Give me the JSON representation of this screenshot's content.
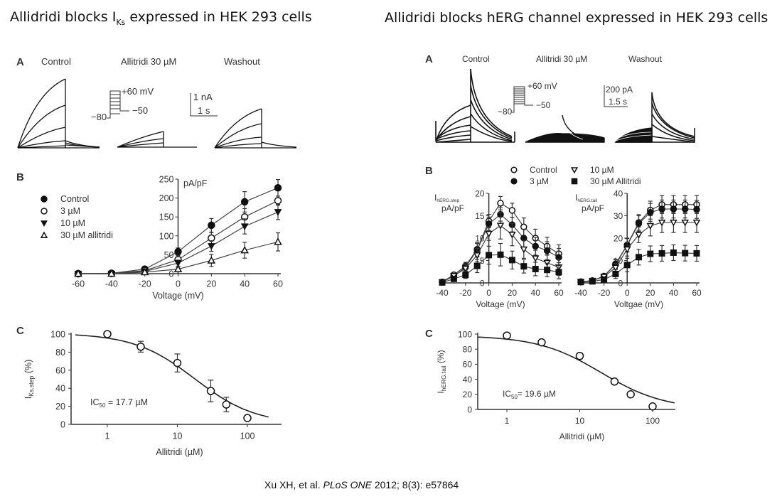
{
  "titles": {
    "left": {
      "prefix": "Allidridi blocks I",
      "sub": "Ks",
      "suffix": " expressed in HEK 293 cells"
    },
    "right": "Allidridi blocks hERG channel expressed in HEK 293 cells"
  },
  "citation": {
    "authors": "Xu XH, et al. ",
    "journal": "PLoS ONE",
    "rest": " 2012; 8(3): e57864"
  },
  "left_panel": {
    "A": {
      "letter": "A",
      "conditions": [
        "Control",
        "Allitridi 30 µM",
        "Washout"
      ],
      "protocol": {
        "top": "+60 mV",
        "hold": "−80",
        "tail": "−50"
      },
      "scale": {
        "current": "1 nA",
        "time": "1 s"
      }
    },
    "B": {
      "letter": "B"
    },
    "C": {
      "letter": "C",
      "annotation_main": "IC",
      "annotation_sub": "50",
      "annotation_rest": " = 17.7 µM"
    }
  },
  "right_panel": {
    "A": {
      "letter": "A",
      "conditions": [
        "Control",
        "Allitridi 30 µM",
        "Washout"
      ],
      "protocol": {
        "top": "+60 mV",
        "hold": "−80",
        "tail": "−50"
      },
      "scale": {
        "current": "200 pA",
        "time": "1.5 s"
      }
    },
    "B": {
      "letter": "B"
    },
    "C": {
      "letter": "C",
      "annotation_main": "IC",
      "annotation_sub": "50",
      "annotation_rest": "= 19.6 µM"
    }
  },
  "chart_data": [
    {
      "id": "iks-iv",
      "type": "line",
      "title": "",
      "xlabel": "Voltage (mV)",
      "ylabel": "pA/pF",
      "xlim": [
        -60,
        60
      ],
      "ylim": [
        0,
        250
      ],
      "xticks": [
        -60,
        -40,
        -20,
        0,
        20,
        40,
        60
      ],
      "yticks": [
        0,
        50,
        100,
        150,
        200,
        250
      ],
      "grid": false,
      "legend": "left",
      "x": [
        -60,
        -40,
        -20,
        0,
        20,
        40,
        60
      ],
      "series": [
        {
          "name": "Control",
          "marker": "filled-circle",
          "values": [
            0,
            1,
            12,
            58,
            128,
            190,
            227
          ],
          "err": [
            0,
            0,
            3,
            10,
            18,
            27,
            22
          ]
        },
        {
          "name": "3 µM",
          "marker": "open-circle",
          "values": [
            0,
            1,
            8,
            37,
            94,
            150,
            193
          ],
          "err": [
            0,
            0,
            3,
            8,
            15,
            22,
            12
          ]
        },
        {
          "name": "10 µM",
          "marker": "filled-triangle-down",
          "values": [
            0,
            0,
            6,
            28,
            73,
            125,
            163
          ],
          "err": [
            0,
            0,
            3,
            8,
            14,
            20,
            20
          ]
        },
        {
          "name": "30 µM allitridi",
          "marker": "open-triangle-up",
          "values": [
            0,
            0,
            4,
            12,
            35,
            62,
            84
          ],
          "err": [
            0,
            0,
            2,
            5,
            16,
            21,
            24
          ]
        }
      ]
    },
    {
      "id": "iks-dose",
      "type": "scatter",
      "xlabel": "Allitridi (µM)",
      "ylabel": "I_Ks.step (%)",
      "xscale": "log",
      "xlim": [
        0.3,
        300
      ],
      "ylim": [
        0,
        100
      ],
      "xticks": [
        1,
        10,
        100
      ],
      "yticks": [
        0,
        20,
        40,
        60,
        80,
        100
      ],
      "grid": false,
      "x": [
        1,
        3,
        10,
        30,
        50,
        100
      ],
      "values": [
        100,
        86,
        68,
        37,
        22,
        7
      ],
      "err": [
        2,
        6,
        10,
        12,
        8,
        2
      ],
      "fit": {
        "type": "hill",
        "ic50": 17.7,
        "top": 101,
        "bottom": 0,
        "hill": 1.0
      }
    },
    {
      "id": "herg-step-iv",
      "type": "line",
      "xlabel": "Voltage (mV)",
      "ylabel": "I_hERG.step pA/pF",
      "xlim": [
        -40,
        60
      ],
      "ylim": [
        0,
        20
      ],
      "xticks": [
        -40,
        -20,
        0,
        20,
        40,
        60
      ],
      "yticks": [
        0,
        5,
        10,
        15,
        20
      ],
      "grid": false,
      "legend": "top",
      "x": [
        -40,
        -30,
        -20,
        -10,
        0,
        10,
        20,
        30,
        40,
        50,
        60
      ],
      "series": [
        {
          "name": "Control",
          "marker": "open-circle",
          "values": [
            0.2,
            1.8,
            3.8,
            7.5,
            13.8,
            17.8,
            16.2,
            12.5,
            10,
            8.2,
            6.5
          ],
          "err": [
            0.2,
            0.4,
            0.8,
            1.5,
            1.5,
            1.5,
            1.6,
            2,
            2,
            2,
            2
          ]
        },
        {
          "name": "3 µM",
          "marker": "filled-circle",
          "values": [
            0.2,
            1.5,
            3.5,
            7.3,
            13.2,
            15.3,
            13,
            10,
            8.2,
            7.2,
            5.7
          ],
          "err": [
            0.2,
            0.4,
            0.8,
            1.5,
            1.5,
            1.5,
            1.6,
            2,
            2,
            2,
            2
          ]
        },
        {
          "name": "10 µM",
          "marker": "open-triangle-down",
          "values": [
            0.2,
            1.6,
            3.2,
            6.2,
            11,
            12.8,
            10.8,
            7.5,
            5.5,
            4.5,
            3.5
          ],
          "err": [
            0.2,
            0.4,
            0.8,
            1.5,
            1.5,
            3,
            2.5,
            2,
            1.8,
            1.8,
            1.8
          ]
        },
        {
          "name": "30 µM Allitridi",
          "marker": "filled-square",
          "values": [
            0.1,
            0.9,
            1.8,
            3.8,
            6.2,
            6.3,
            5.1,
            3.7,
            3.1,
            2.9,
            2.4
          ],
          "err": [
            0.2,
            0.4,
            0.8,
            1.5,
            2,
            2.5,
            2,
            1.5,
            1.5,
            1.5,
            1.5
          ]
        }
      ]
    },
    {
      "id": "herg-tail-iv",
      "type": "line",
      "xlabel": "Voltgae (mV)",
      "ylabel": "I_hERG.tail pA/pF",
      "xlim": [
        -40,
        60
      ],
      "ylim": [
        0,
        40
      ],
      "xticks": [
        -40,
        -20,
        0,
        20,
        40,
        60
      ],
      "yticks": [
        0,
        10,
        20,
        30,
        40
      ],
      "grid": false,
      "x": [
        -40,
        -30,
        -20,
        -10,
        0,
        10,
        20,
        30,
        40,
        50,
        60
      ],
      "series": [
        {
          "name": "Control",
          "marker": "open-circle",
          "values": [
            0.5,
            1,
            3,
            8.5,
            17,
            27,
            32.5,
            35,
            35,
            35,
            35
          ],
          "err": [
            0.3,
            0.5,
            1,
            2,
            3,
            3.5,
            4,
            4,
            4,
            4,
            4
          ]
        },
        {
          "name": "3 µM",
          "marker": "filled-circle",
          "values": [
            0.5,
            1,
            3,
            8.3,
            16.8,
            26.5,
            31.5,
            33,
            33,
            33,
            32.8
          ],
          "err": [
            0.3,
            0.5,
            1,
            2,
            3,
            3.5,
            4,
            4,
            4,
            4,
            4
          ]
        },
        {
          "name": "10 µM",
          "marker": "open-triangle-down",
          "values": [
            0.5,
            1,
            2.8,
            6.8,
            15,
            21.5,
            25.5,
            27,
            27,
            27,
            27
          ],
          "err": [
            0.3,
            0.5,
            1,
            2,
            3,
            3.5,
            4.5,
            4.5,
            4.5,
            4.5,
            4.5
          ]
        },
        {
          "name": "30 µM Allitridi",
          "marker": "filled-square",
          "values": [
            0.4,
            0.7,
            1.5,
            4,
            8,
            11.5,
            13,
            13.2,
            13.5,
            13.3,
            13.2
          ],
          "err": [
            0.3,
            0.5,
            1,
            2,
            3,
            3.5,
            3.5,
            3.5,
            3.5,
            3.5,
            3.5
          ]
        }
      ]
    },
    {
      "id": "herg-dose",
      "type": "scatter",
      "xlabel": "Allitridi (µM)",
      "ylabel": "I_hERG.tail (%)",
      "xscale": "log",
      "xlim": [
        0.3,
        200
      ],
      "ylim": [
        0,
        100
      ],
      "xticks": [
        1,
        10,
        100
      ],
      "yticks": [
        0,
        20,
        40,
        60,
        80,
        100
      ],
      "grid": false,
      "x": [
        1,
        3,
        10,
        30,
        50,
        100
      ],
      "values": [
        98,
        89,
        71,
        37,
        20,
        4
      ],
      "err": [
        1,
        2,
        4,
        3,
        2,
        1
      ],
      "fit": {
        "type": "hill",
        "ic50": 19.6,
        "top": 98,
        "bottom": 0,
        "hill": 1.0
      }
    }
  ]
}
